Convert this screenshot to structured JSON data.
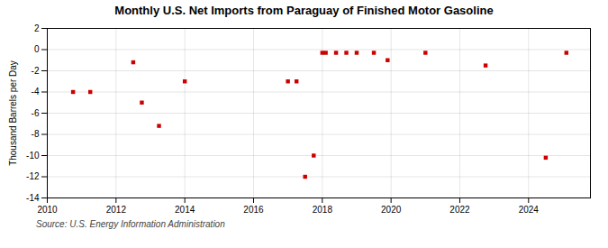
{
  "chart_data": {
    "type": "scatter",
    "title": "Monthly U.S. Net Imports from Paraguay of Finished Motor Gasoline",
    "ylabel": "Thousand Barrels per Day",
    "annotations": [
      "Source: U.S. Energy Information Administration"
    ],
    "x": [
      2010.75,
      2011.25,
      2012.5,
      2012.75,
      2013.25,
      2014.0,
      2017.0,
      2017.25,
      2017.5,
      2017.75,
      2018.0,
      2018.1,
      2018.4,
      2018.7,
      2019.0,
      2019.5,
      2019.9,
      2021.0,
      2022.75,
      2024.5,
      2025.1
    ],
    "values": [
      -4,
      -4,
      -1.2,
      -5,
      -7.2,
      -3,
      -3,
      -3,
      -12,
      -10,
      -0.3,
      -0.3,
      -0.3,
      -0.3,
      -0.3,
      -0.3,
      -1,
      -0.3,
      -1.5,
      -10.2,
      -0.3
    ],
    "color": "#cc0000",
    "marker": "square",
    "xlim": [
      2010,
      2025.8
    ],
    "xticks": [
      2010,
      2012,
      2014,
      2016,
      2018,
      2020,
      2022,
      2024
    ],
    "ylim": [
      -14,
      2
    ],
    "yticks": [
      2,
      0,
      -2,
      -4,
      -6,
      -8,
      -10,
      -12,
      -14
    ],
    "grid": true
  }
}
